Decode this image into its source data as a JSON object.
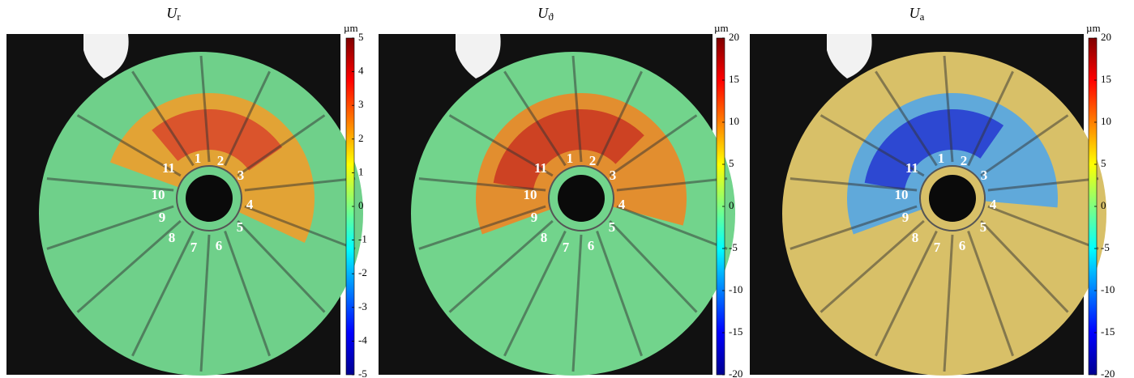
{
  "panels": [
    {
      "symbol": "U",
      "subscript": "r",
      "unit": "µm",
      "cbar_lim": [
        -5,
        5
      ],
      "cbar_ticks": [
        5,
        4,
        3,
        2,
        1,
        0,
        -1,
        -2,
        -3,
        -4,
        -5
      ]
    },
    {
      "symbol": "U",
      "subscript": "ϑ",
      "unit": "µm",
      "cbar_lim": [
        -20,
        20
      ],
      "cbar_ticks": [
        20,
        15,
        10,
        5,
        0,
        -5,
        -10,
        -15,
        -20
      ]
    },
    {
      "symbol": "U",
      "subscript": "a",
      "unit": "µm",
      "cbar_lim": [
        -20,
        20
      ],
      "cbar_ticks": [
        20,
        15,
        10,
        5,
        0,
        -5,
        -10,
        -15,
        -20
      ]
    }
  ],
  "segment_labels": [
    "1",
    "2",
    "3",
    "4",
    "5",
    "6",
    "7",
    "8",
    "9",
    "10",
    "11"
  ]
}
